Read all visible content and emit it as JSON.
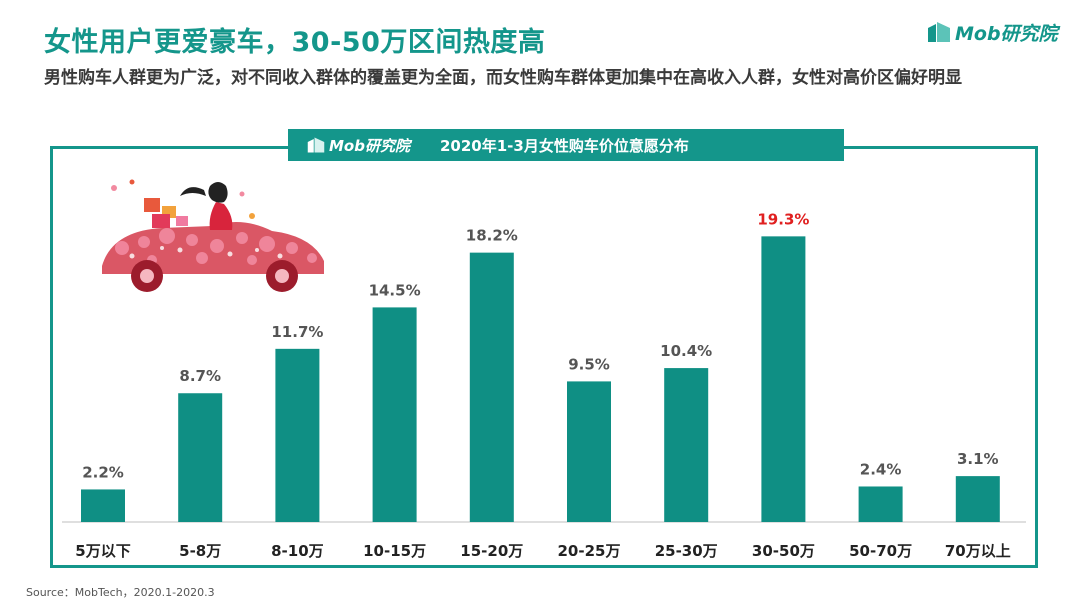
{
  "title": "女性用户更爱豪车，30-50万区间热度高",
  "subtitle": "男性购车人群更为广泛，对不同收入群体的覆盖更为全面，而女性购车群体更加集中在高收入人群，女性对高价区偏好明显",
  "logo": {
    "text": "Mob研究院",
    "icon": "mob-logo-icon"
  },
  "chart_header": {
    "logo_text": "Mob研究院",
    "title": "2020年1-3月女性购车价位意愿分布"
  },
  "source": "Source：MobTech，2020.1-2020.3",
  "colors": {
    "accent": "#14968b",
    "bar": "#0f8f84",
    "highlight_label": "#e02020",
    "label": "#555555"
  },
  "illustration": {
    "icon": "woman-in-flower-car-illustration"
  },
  "chart_data": {
    "type": "bar",
    "title": "2020年1-3月女性购车价位意愿分布",
    "categories": [
      "5万以下",
      "5-8万",
      "8-10万",
      "10-15万",
      "15-20万",
      "20-25万",
      "25-30万",
      "30-50万",
      "50-70万",
      "70万以上"
    ],
    "values": [
      2.2,
      8.7,
      11.7,
      14.5,
      18.2,
      9.5,
      10.4,
      19.3,
      2.4,
      3.1
    ],
    "value_labels": [
      "2.2%",
      "8.7%",
      "11.7%",
      "14.5%",
      "18.2%",
      "9.5%",
      "10.4%",
      "19.3%",
      "2.4%",
      "3.1%"
    ],
    "highlight_index": 7,
    "xlabel": "",
    "ylabel": "",
    "ylim": [
      0,
      20
    ],
    "grid": false,
    "legend": "none"
  }
}
